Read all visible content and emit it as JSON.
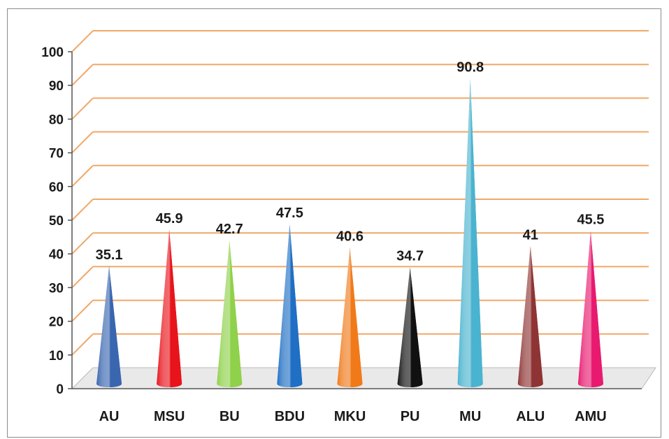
{
  "chart_data": {
    "type": "bar",
    "bar_shape": "cone",
    "title": "",
    "xlabel": "",
    "ylabel": "",
    "categories": [
      "AU",
      "MSU",
      "BU",
      "BDU",
      "MKU",
      "PU",
      "MU",
      "ALU",
      "AMU"
    ],
    "values": [
      35.1,
      45.9,
      42.7,
      47.5,
      40.6,
      34.7,
      90.8,
      41,
      45.5
    ],
    "data_labels": [
      "35.1",
      "45.9",
      "42.7",
      "47.5",
      "40.6",
      "34.7",
      "90.8",
      "41",
      "45.5"
    ],
    "colors": [
      "#3a66b0",
      "#e8141b",
      "#8fd14a",
      "#1f6fc4",
      "#f07a1a",
      "#111111",
      "#4ab3cf",
      "#8e3434",
      "#e8196f"
    ],
    "ylim": [
      0,
      100
    ],
    "yticks": [
      0,
      10,
      20,
      30,
      40,
      50,
      60,
      70,
      80,
      90,
      100
    ],
    "grid": true,
    "grid_color": "#f0a868",
    "legend": "none"
  }
}
